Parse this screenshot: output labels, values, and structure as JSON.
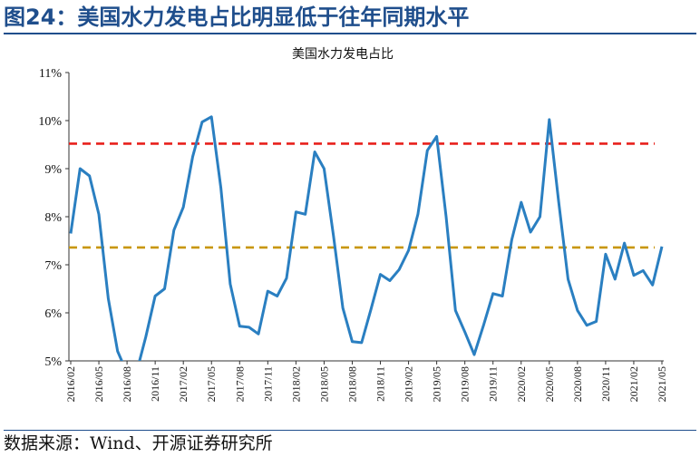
{
  "figure_title": "图24：美国水力发电占比明显低于往年同期水平",
  "source": "数据来源：Wind、开源证券研究所",
  "colors": {
    "series_line": "#2a7fc1",
    "reference_high": "#e8201c",
    "reference_low": "#c8960a",
    "title_blue": "#1f4e8c"
  },
  "chart_data": {
    "type": "line",
    "title": "美国水力发电占比",
    "xlabel": "",
    "ylabel": "",
    "ylim": [
      5,
      11
    ],
    "y_ticks": [
      "5%",
      "6%",
      "7%",
      "8%",
      "9%",
      "10%",
      "11%"
    ],
    "x_ticks": [
      "2016/02",
      "2016/05",
      "2016/08",
      "2016/11",
      "2017/02",
      "2017/05",
      "2017/08",
      "2017/11",
      "2018/02",
      "2018/05",
      "2018/08",
      "2018/11",
      "2019/02",
      "2019/05",
      "2019/08",
      "2019/11",
      "2020/02",
      "2020/05",
      "2020/08",
      "2020/11",
      "2021/02",
      "2021/05"
    ],
    "grid": false,
    "legend": "none",
    "x": [
      "2016/02",
      "2016/03",
      "2016/04",
      "2016/05",
      "2016/06",
      "2016/07",
      "2016/08",
      "2016/09",
      "2016/10",
      "2016/11",
      "2016/12",
      "2017/01",
      "2017/02",
      "2017/03",
      "2017/04",
      "2017/05",
      "2017/06",
      "2017/07",
      "2017/08",
      "2017/09",
      "2017/10",
      "2017/11",
      "2017/12",
      "2018/01",
      "2018/02",
      "2018/03",
      "2018/04",
      "2018/05",
      "2018/06",
      "2018/07",
      "2018/08",
      "2018/09",
      "2018/10",
      "2018/11",
      "2018/12",
      "2019/01",
      "2019/02",
      "2019/03",
      "2019/04",
      "2019/05",
      "2019/06",
      "2019/07",
      "2019/08",
      "2019/09",
      "2019/10",
      "2019/11",
      "2019/12",
      "2020/01",
      "2020/02",
      "2020/03",
      "2020/04",
      "2020/05",
      "2020/06",
      "2020/07",
      "2020/08",
      "2020/09",
      "2020/10",
      "2020/11",
      "2020/12",
      "2021/01",
      "2021/02",
      "2021/03",
      "2021/04",
      "2021/05"
    ],
    "series": [
      {
        "values": [
          7.65,
          9.0,
          8.85,
          8.05,
          6.3,
          5.2,
          4.75,
          4.75,
          5.5,
          6.35,
          6.5,
          7.72,
          8.2,
          9.25,
          9.97,
          10.08,
          8.6,
          6.6,
          5.72,
          5.7,
          5.56,
          6.45,
          6.35,
          6.72,
          8.1,
          8.05,
          9.35,
          9.0,
          7.6,
          6.1,
          5.4,
          5.38,
          6.08,
          6.8,
          6.67,
          6.9,
          7.3,
          8.05,
          9.38,
          9.67,
          8.0,
          6.05,
          5.6,
          5.13,
          5.75,
          6.4,
          6.35,
          7.52,
          8.3,
          7.68,
          8.0,
          10.02,
          8.3,
          6.7,
          6.05,
          5.74,
          5.82,
          7.22,
          6.7,
          7.45,
          6.78,
          6.88,
          6.58,
          7.38
        ]
      }
    ],
    "reference_lines": [
      {
        "value": 9.52,
        "color": "#e8201c"
      },
      {
        "value": 7.36,
        "color": "#c8960a"
      }
    ]
  }
}
